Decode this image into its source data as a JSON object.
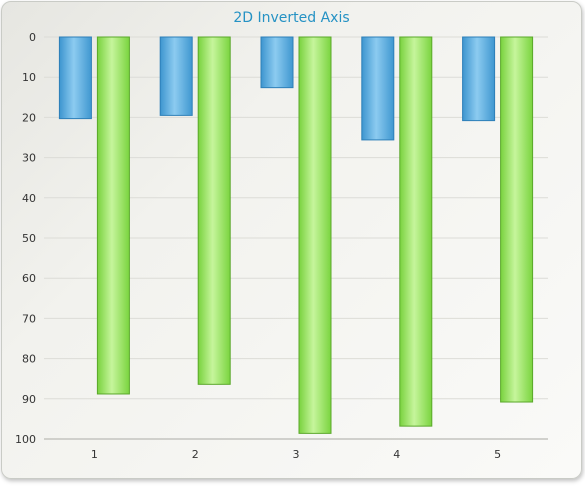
{
  "chart_data": {
    "type": "bar",
    "title": "2D Inverted Axis",
    "xlabel": "",
    "ylabel": "",
    "categories": [
      "1",
      "2",
      "3",
      "4",
      "5"
    ],
    "series": [
      {
        "values": [
          20.3,
          19.5,
          12.6,
          25.6,
          20.8
        ],
        "color": "#5aaee0"
      },
      {
        "values": [
          88.8,
          86.4,
          98.6,
          96.8,
          90.8
        ],
        "color": "#94e25a"
      }
    ],
    "ylim": [
      0,
      100
    ],
    "y_inverted": true,
    "y_ticks": [
      "0",
      "10",
      "20",
      "30",
      "40",
      "50",
      "60",
      "70",
      "80",
      "90",
      "100"
    ],
    "grid": true,
    "legend": "none"
  }
}
